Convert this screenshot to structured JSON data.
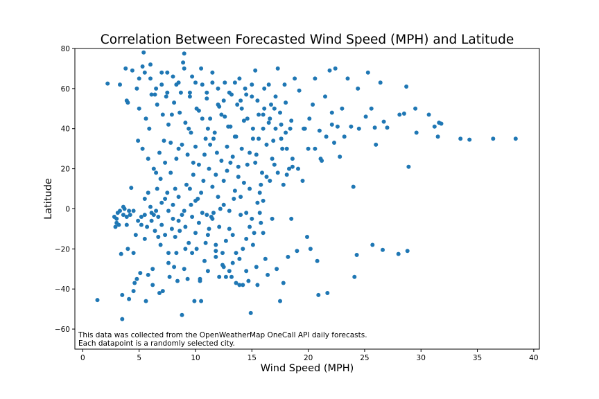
{
  "chart_data": {
    "type": "scatter",
    "title": "Correlation Between Forecasted Wind Speed (MPH) and Latitude",
    "xlabel": "Wind Speed (MPH)",
    "ylabel": "Latitude",
    "xlim": [
      -0.7,
      40.5
    ],
    "ylim": [
      -70,
      80
    ],
    "xticks": [
      0,
      5,
      10,
      15,
      20,
      25,
      30,
      35,
      40
    ],
    "yticks": [
      -60,
      -40,
      -20,
      0,
      20,
      40,
      60,
      80
    ],
    "grid": false,
    "legend": "none",
    "point_color": "#1f77b4",
    "annotations": [
      "This data was collected from the OpenWeatherMap OneCall API daily forecasts.",
      "Each datapoint is a randomly selected city."
    ],
    "points": [
      [
        1.3,
        -45.5
      ],
      [
        2.2,
        62.5
      ],
      [
        2.9,
        -9
      ],
      [
        3.0,
        -5
      ],
      [
        3.1,
        -2
      ],
      [
        3.2,
        -8
      ],
      [
        3.3,
        62
      ],
      [
        3.4,
        -22.5
      ],
      [
        3.5,
        -43
      ],
      [
        3.5,
        -55
      ],
      [
        3.6,
        -3
      ],
      [
        3.7,
        0
      ],
      [
        3.8,
        70
      ],
      [
        3.9,
        -8
      ],
      [
        3.9,
        54
      ],
      [
        4.0,
        53
      ],
      [
        4.1,
        -45
      ],
      [
        4.2,
        -3
      ],
      [
        4.3,
        10.5
      ],
      [
        4.4,
        69
      ],
      [
        4.5,
        -22
      ],
      [
        4.5,
        -41
      ],
      [
        4.6,
        -37
      ],
      [
        4.7,
        -13
      ],
      [
        4.8,
        60
      ],
      [
        4.9,
        34
      ],
      [
        5.0,
        65
      ],
      [
        5.1,
        -32
      ],
      [
        5.2,
        -4
      ],
      [
        5.3,
        71
      ],
      [
        5.4,
        78
      ],
      [
        5.5,
        68
      ],
      [
        5.6,
        -46
      ],
      [
        5.7,
        -9
      ],
      [
        5.8,
        -33
      ],
      [
        5.9,
        40
      ],
      [
        6.0,
        72
      ],
      [
        6.1,
        -2
      ],
      [
        6.2,
        -30
      ],
      [
        6.3,
        -3
      ],
      [
        6.4,
        57
      ],
      [
        6.5,
        18
      ],
      [
        6.6,
        10
      ],
      [
        6.7,
        -14
      ],
      [
        6.8,
        -42
      ],
      [
        6.9,
        15
      ],
      [
        7.0,
        62
      ],
      [
        7.1,
        -41
      ],
      [
        7.2,
        34
      ],
      [
        7.3,
        5
      ],
      [
        7.4,
        56
      ],
      [
        7.5,
        68
      ],
      [
        7.6,
        -22
      ],
      [
        7.7,
        -34
      ],
      [
        7.8,
        18
      ],
      [
        7.9,
        47
      ],
      [
        8.0,
        -5
      ],
      [
        8.1,
        -29
      ],
      [
        8.2,
        10
      ],
      [
        8.3,
        62
      ],
      [
        8.4,
        -36
      ],
      [
        8.5,
        30
      ],
      [
        8.6,
        -11
      ],
      [
        8.7,
        58
      ],
      [
        8.8,
        -53
      ],
      [
        8.9,
        73
      ],
      [
        9.0,
        77.5
      ],
      [
        9.1,
        -20
      ],
      [
        9.2,
        12
      ],
      [
        9.3,
        -35
      ],
      [
        9.4,
        40
      ],
      [
        9.5,
        56
      ],
      [
        9.6,
        2
      ],
      [
        9.7,
        66
      ],
      [
        9.8,
        23
      ],
      [
        9.9,
        -46
      ],
      [
        10.0,
        31
      ],
      [
        10.1,
        -20
      ],
      [
        10.2,
        5
      ],
      [
        10.3,
        49
      ],
      [
        10.4,
        -35
      ],
      [
        10.5,
        -46
      ],
      [
        10.6,
        62
      ],
      [
        10.7,
        14
      ],
      [
        10.8,
        -26
      ],
      [
        10.9,
        35
      ],
      [
        11.0,
        55
      ],
      [
        11.1,
        -13
      ],
      [
        11.2,
        20
      ],
      [
        11.3,
        45
      ],
      [
        11.4,
        -4
      ],
      [
        11.5,
        63
      ],
      [
        11.6,
        -2
      ],
      [
        11.7,
        38
      ],
      [
        11.8,
        -18
      ],
      [
        11.9,
        28
      ],
      [
        12.0,
        52
      ],
      [
        12.1,
        -34
      ],
      [
        12.2,
        0
      ],
      [
        12.3,
        47
      ],
      [
        12.4,
        -22
      ],
      [
        12.5,
        14
      ],
      [
        12.6,
        63
      ],
      [
        12.7,
        -34
      ],
      [
        12.8,
        31
      ],
      [
        12.9,
        41
      ],
      [
        13.0,
        -10
      ],
      [
        13.1,
        23
      ],
      [
        13.2,
        57
      ],
      [
        13.3,
        -27
      ],
      [
        13.4,
        5
      ],
      [
        13.5,
        36
      ],
      [
        13.6,
        -37
      ],
      [
        13.7,
        52
      ],
      [
        13.8,
        16
      ],
      [
        13.9,
        65
      ],
      [
        14.0,
        -3
      ],
      [
        14.1,
        30
      ],
      [
        14.2,
        -20
      ],
      [
        14.3,
        44
      ],
      [
        14.4,
        60
      ],
      [
        14.5,
        -15
      ],
      [
        14.6,
        22
      ],
      [
        14.7,
        -36
      ],
      [
        14.8,
        10
      ],
      [
        14.9,
        -52
      ],
      [
        15.0,
        56
      ],
      [
        15.1,
        35
      ],
      [
        15.2,
        -12
      ],
      [
        15.3,
        69
      ],
      [
        15.4,
        27
      ],
      [
        15.5,
        -38
      ],
      [
        15.6,
        47
      ],
      [
        15.7,
        8
      ],
      [
        15.8,
        -7
      ],
      [
        15.9,
        18
      ],
      [
        16.0,
        40
      ],
      [
        16.1,
        60
      ],
      [
        16.2,
        -25
      ],
      [
        16.3,
        32
      ],
      [
        16.4,
        -33
      ],
      [
        16.5,
        43
      ],
      [
        16.6,
        14
      ],
      [
        16.7,
        52
      ],
      [
        16.8,
        -5
      ],
      [
        16.9,
        34
      ],
      [
        17.0,
        22
      ],
      [
        17.1,
        56
      ],
      [
        17.2,
        -30
      ],
      [
        17.3,
        70
      ],
      [
        17.5,
        -46
      ],
      [
        17.6,
        42
      ],
      [
        17.7,
        30
      ],
      [
        17.8,
        -37
      ],
      [
        17.9,
        62
      ],
      [
        18.0,
        38
      ],
      [
        18.1,
        17
      ],
      [
        18.2,
        -24
      ],
      [
        18.4,
        40
      ],
      [
        18.5,
        -5
      ],
      [
        18.6,
        21
      ],
      [
        18.8,
        65
      ],
      [
        19.0,
        -21
      ],
      [
        19.2,
        59
      ],
      [
        19.5,
        14
      ],
      [
        19.7,
        40
      ],
      [
        19.9,
        -14
      ],
      [
        20.0,
        30
      ],
      [
        20.2,
        -20
      ],
      [
        20.4,
        52
      ],
      [
        20.6,
        65
      ],
      [
        20.8,
        -26
      ],
      [
        20.9,
        -43
      ],
      [
        21.0,
        39
      ],
      [
        21.2,
        24
      ],
      [
        21.5,
        56
      ],
      [
        21.7,
        -42
      ],
      [
        21.9,
        69
      ],
      [
        22.1,
        48
      ],
      [
        22.3,
        33
      ],
      [
        22.4,
        70
      ],
      [
        22.6,
        41
      ],
      [
        22.8,
        26
      ],
      [
        23.0,
        50
      ],
      [
        23.2,
        36
      ],
      [
        23.5,
        65
      ],
      [
        23.8,
        41
      ],
      [
        24.0,
        11
      ],
      [
        24.1,
        -34
      ],
      [
        24.3,
        -23
      ],
      [
        24.4,
        60
      ],
      [
        24.5,
        40
      ],
      [
        25.1,
        46
      ],
      [
        25.3,
        68
      ],
      [
        25.6,
        50
      ],
      [
        25.7,
        -18
      ],
      [
        25.9,
        40.5
      ],
      [
        26.0,
        32
      ],
      [
        26.4,
        63
      ],
      [
        26.6,
        -20.5
      ],
      [
        26.7,
        43.5
      ],
      [
        27.0,
        40.5
      ],
      [
        28.0,
        -22.5
      ],
      [
        28.1,
        47
      ],
      [
        28.5,
        47.5
      ],
      [
        28.7,
        61
      ],
      [
        28.8,
        -21
      ],
      [
        28.9,
        21
      ],
      [
        29.5,
        50
      ],
      [
        29.6,
        38
      ],
      [
        30.7,
        47
      ],
      [
        31.2,
        41
      ],
      [
        31.5,
        36
      ],
      [
        31.6,
        43
      ],
      [
        31.8,
        42.5
      ],
      [
        33.5,
        35
      ],
      [
        34.3,
        34.5
      ],
      [
        36.4,
        35
      ],
      [
        38.4,
        35
      ],
      [
        2.8,
        -4
      ],
      [
        3.0,
        -7
      ],
      [
        3.3,
        -1
      ],
      [
        3.6,
        1
      ],
      [
        3.9,
        -4
      ],
      [
        4.1,
        -1
      ],
      [
        4.5,
        -1
      ],
      [
        4.9,
        -6
      ],
      [
        5.2,
        -8
      ],
      [
        5.5,
        -3
      ],
      [
        5.8,
        8
      ],
      [
        6.1,
        -6
      ],
      [
        6.4,
        -11
      ],
      [
        6.7,
        -4
      ],
      [
        7.0,
        -8
      ],
      [
        7.3,
        -13
      ],
      [
        7.6,
        -1
      ],
      [
        7.9,
        -10
      ],
      [
        8.2,
        -14
      ],
      [
        8.5,
        -6
      ],
      [
        8.8,
        -3
      ],
      [
        9.1,
        -9
      ],
      [
        9.4,
        -17
      ],
      [
        9.7,
        -4
      ],
      [
        10.0,
        -12
      ],
      [
        10.3,
        -7
      ],
      [
        10.6,
        -2
      ],
      [
        10.9,
        -17
      ],
      [
        11.2,
        -10
      ],
      [
        11.5,
        -5
      ],
      [
        11.8,
        -24
      ],
      [
        12.1,
        -9
      ],
      [
        12.4,
        -28
      ],
      [
        12.7,
        -16
      ],
      [
        13.0,
        -31
      ],
      [
        13.3,
        -13
      ],
      [
        13.6,
        -22
      ],
      [
        13.9,
        -25
      ],
      [
        14.2,
        -38
      ],
      [
        14.5,
        -31
      ],
      [
        14.8,
        -9
      ],
      [
        15.1,
        -18
      ],
      [
        15.4,
        -29
      ],
      [
        15.7,
        -2
      ],
      [
        16.0,
        4
      ],
      [
        4.0,
        -20
      ],
      [
        4.8,
        -35
      ],
      [
        5.5,
        -15
      ],
      [
        6.2,
        -38
      ],
      [
        6.9,
        -18
      ],
      [
        7.6,
        -27
      ],
      [
        8.3,
        -22
      ],
      [
        9.0,
        -30
      ],
      [
        9.7,
        -22
      ],
      [
        10.4,
        -36
      ],
      [
        11.1,
        -31
      ],
      [
        11.8,
        -21
      ],
      [
        12.5,
        -29
      ],
      [
        13.2,
        -34
      ],
      [
        13.9,
        -38
      ],
      [
        5.0,
        50
      ],
      [
        5.6,
        45
      ],
      [
        6.1,
        57
      ],
      [
        6.6,
        52
      ],
      [
        7.1,
        47
      ],
      [
        7.6,
        42
      ],
      [
        8.1,
        53
      ],
      [
        8.6,
        48
      ],
      [
        9.1,
        43
      ],
      [
        9.6,
        38
      ],
      [
        10.1,
        50
      ],
      [
        10.6,
        45
      ],
      [
        11.1,
        40
      ],
      [
        11.6,
        35
      ],
      [
        12.1,
        51
      ],
      [
        12.6,
        46
      ],
      [
        13.1,
        41
      ],
      [
        13.6,
        36
      ],
      [
        14.1,
        50
      ],
      [
        14.6,
        45
      ],
      [
        15.1,
        40
      ],
      [
        15.6,
        35
      ],
      [
        16.1,
        50
      ],
      [
        16.6,
        45
      ],
      [
        17.1,
        40
      ],
      [
        17.6,
        35
      ],
      [
        18.1,
        30
      ],
      [
        18.6,
        25
      ],
      [
        19.1,
        20
      ],
      [
        19.6,
        40
      ],
      [
        20.1,
        45
      ],
      [
        20.6,
        30
      ],
      [
        21.1,
        25
      ],
      [
        21.6,
        36
      ],
      [
        22.1,
        42
      ],
      [
        5.3,
        30
      ],
      [
        5.8,
        25
      ],
      [
        6.3,
        20
      ],
      [
        6.8,
        28
      ],
      [
        7.3,
        23
      ],
      [
        7.8,
        33
      ],
      [
        8.3,
        25
      ],
      [
        8.8,
        32
      ],
      [
        9.3,
        27
      ],
      [
        9.8,
        17
      ],
      [
        10.3,
        22
      ],
      [
        10.8,
        27
      ],
      [
        11.3,
        32
      ],
      [
        11.8,
        17
      ],
      [
        12.3,
        24
      ],
      [
        12.8,
        19
      ],
      [
        13.3,
        26
      ],
      [
        13.8,
        21
      ],
      [
        14.3,
        13
      ],
      [
        14.8,
        28
      ],
      [
        15.3,
        23
      ],
      [
        15.8,
        12
      ],
      [
        16.3,
        16
      ],
      [
        16.8,
        25
      ],
      [
        17.3,
        18
      ],
      [
        17.8,
        12
      ],
      [
        18.3,
        20
      ],
      [
        5.5,
        5
      ],
      [
        6.0,
        1
      ],
      [
        6.5,
        -1
      ],
      [
        7.0,
        3
      ],
      [
        7.5,
        8
      ],
      [
        8.0,
        2
      ],
      [
        8.5,
        6
      ],
      [
        9.0,
        -1
      ],
      [
        9.5,
        10
      ],
      [
        10.0,
        4
      ],
      [
        10.5,
        8
      ],
      [
        11.0,
        -3
      ],
      [
        11.5,
        11
      ],
      [
        12.0,
        6
      ],
      [
        12.5,
        2
      ],
      [
        13.0,
        -1
      ],
      [
        13.5,
        9
      ],
      [
        14.0,
        6
      ],
      [
        14.5,
        -2
      ],
      [
        15.0,
        -5
      ],
      [
        15.5,
        3
      ],
      [
        16.0,
        -12
      ],
      [
        6.0,
        65
      ],
      [
        6.5,
        60
      ],
      [
        7.0,
        68
      ],
      [
        7.5,
        58
      ],
      [
        8.0,
        66
      ],
      [
        8.5,
        63
      ],
      [
        9.0,
        70
      ],
      [
        9.5,
        58
      ],
      [
        10.0,
        63
      ],
      [
        10.5,
        70
      ],
      [
        11.0,
        58
      ],
      [
        11.5,
        68
      ],
      [
        12.0,
        60
      ],
      [
        12.5,
        54
      ],
      [
        13.0,
        58
      ],
      [
        13.5,
        63
      ],
      [
        14.0,
        54
      ],
      [
        14.5,
        57
      ],
      [
        15.0,
        62
      ],
      [
        15.5,
        54
      ],
      [
        16.0,
        47
      ],
      [
        16.5,
        62
      ],
      [
        17.0,
        50
      ],
      [
        17.5,
        48
      ],
      [
        18.0,
        53
      ],
      [
        18.5,
        44
      ]
    ]
  }
}
